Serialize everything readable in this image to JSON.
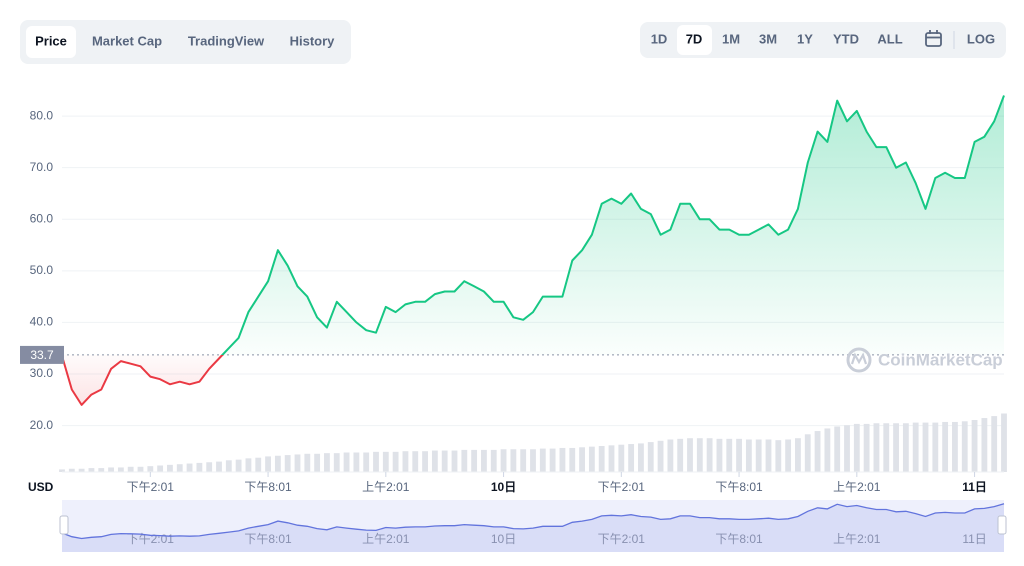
{
  "tabs": [
    "Price",
    "Market Cap",
    "TradingView",
    "History"
  ],
  "ranges": [
    "1D",
    "7D",
    "1M",
    "3M",
    "1Y",
    "YTD",
    "ALL"
  ],
  "log_label": "LOG",
  "watermark": "CoinMarketCap",
  "chart_data": {
    "type": "line",
    "currency": "USD",
    "baseline": {
      "value": 33.7,
      "label": "33.7"
    },
    "up_color": "#16c784",
    "down_color": "#ea3943",
    "volume_color": "#dfe2e8",
    "navigator_color": "#6274dd",
    "xlim": [
      0,
      48
    ],
    "ylim": [
      11,
      87
    ],
    "yticks": [
      {
        "value": 20,
        "label": "20.0"
      },
      {
        "value": 30,
        "label": "30.0"
      },
      {
        "value": 40,
        "label": "40.0"
      },
      {
        "value": 50,
        "label": "50.0"
      },
      {
        "value": 60,
        "label": "60.0"
      },
      {
        "value": 70,
        "label": "70.0"
      },
      {
        "value": 80,
        "label": "80.0"
      }
    ],
    "xticks": [
      {
        "value": 4.5,
        "label": "下午2:01"
      },
      {
        "value": 10.5,
        "label": "下午8:01"
      },
      {
        "value": 16.5,
        "label": "上午2:01"
      },
      {
        "value": 22.5,
        "label": "10日"
      },
      {
        "value": 28.5,
        "label": "下午2:01"
      },
      {
        "value": 34.5,
        "label": "下午8:01"
      },
      {
        "value": 40.5,
        "label": "上午2:01"
      },
      {
        "value": 46.5,
        "label": "11日"
      }
    ],
    "grid": true,
    "x": [
      0,
      0.5,
      1,
      1.5,
      2,
      2.5,
      3,
      3.5,
      4,
      4.5,
      5,
      5.5,
      6,
      6.5,
      7,
      7.5,
      8,
      8.5,
      9,
      9.5,
      10,
      10.5,
      11,
      11.5,
      12,
      12.5,
      13,
      13.5,
      14,
      14.5,
      15,
      15.5,
      16,
      16.5,
      17,
      17.5,
      18,
      18.5,
      19,
      19.5,
      20,
      20.5,
      21,
      21.5,
      22,
      22.5,
      23,
      23.5,
      24,
      24.5,
      25,
      25.5,
      26,
      26.5,
      27,
      27.5,
      28,
      28.5,
      29,
      29.5,
      30,
      30.5,
      31,
      31.5,
      32,
      32.5,
      33,
      33.5,
      34,
      34.5,
      35,
      35.5,
      36,
      36.5,
      37,
      37.5,
      38,
      38.5,
      39,
      39.5,
      40,
      40.5,
      41,
      41.5,
      42,
      42.5,
      43,
      43.5,
      44,
      44.5,
      45,
      45.5,
      46,
      46.5,
      47,
      47.5,
      48
    ],
    "values": [
      33.5,
      27,
      24,
      26,
      27,
      31,
      32.5,
      32,
      31.5,
      29.5,
      29,
      28,
      28.5,
      28,
      28.5,
      31,
      33,
      35,
      37,
      42,
      45,
      48,
      54,
      51,
      47,
      45,
      41,
      39,
      44,
      42,
      40,
      38.5,
      38,
      43,
      42,
      43.5,
      44,
      44,
      45.5,
      46,
      46,
      48,
      47,
      46,
      44,
      44,
      41,
      40.5,
      42,
      45,
      45,
      45,
      52,
      54,
      57,
      63,
      64,
      63,
      65,
      62,
      61,
      57,
      58,
      63,
      63,
      60,
      60,
      58,
      58,
      57,
      57,
      58,
      59,
      57,
      58,
      62,
      71,
      77,
      75,
      83,
      79,
      81,
      77,
      74,
      74,
      70,
      71,
      67,
      62,
      68,
      69,
      68,
      68,
      75,
      76,
      79,
      84
    ],
    "volume": [
      4,
      5,
      5,
      6,
      6,
      7,
      7,
      8,
      8,
      9,
      10,
      11,
      12,
      13,
      14,
      15,
      16,
      18,
      19,
      21,
      22,
      24,
      25,
      26,
      27,
      28,
      28,
      29,
      29,
      30,
      30,
      30,
      31,
      31,
      31,
      32,
      32,
      32,
      33,
      33,
      33,
      34,
      34,
      34,
      34,
      35,
      35,
      35,
      35,
      36,
      36,
      37,
      37,
      38,
      39,
      40,
      41,
      42,
      43,
      44,
      46,
      48,
      50,
      51,
      52,
      52,
      52,
      51,
      51,
      51,
      50,
      50,
      50,
      49,
      50,
      52,
      58,
      63,
      67,
      70,
      72,
      74,
      74,
      75,
      75,
      75,
      75,
      76,
      76,
      76,
      77,
      77,
      78,
      80,
      83,
      86,
      90
    ]
  }
}
